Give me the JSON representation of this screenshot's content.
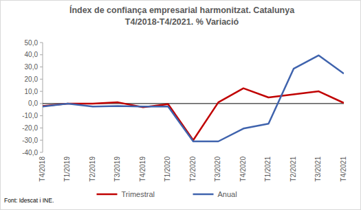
{
  "chart_data": {
    "type": "line",
    "title": "Índex de confiança empresarial harmonitzat. Catalunya",
    "subtitle": "T4/2018-T4/2021. % Variació",
    "source": "Font: Idescat i INE.",
    "categories": [
      "T4/2018",
      "T1/2019",
      "T2/2019",
      "T3/2019",
      "T4/2019",
      "T1/2020",
      "T2/2020",
      "T3/2020",
      "T4/2020",
      "T1/2021",
      "T2/2021",
      "T3/2021",
      "T4/2021"
    ],
    "series": [
      {
        "name": "Trimestral",
        "color": "#c00000",
        "values": [
          -2,
          0,
          0,
          1,
          -3,
          -0.5,
          -30,
          1,
          12.5,
          5,
          7.5,
          10,
          0.5
        ]
      },
      {
        "name": "Anual",
        "color": "#3f63ad",
        "values": [
          -2.5,
          0,
          -2.5,
          -2,
          -2.5,
          -2.5,
          -31,
          -31,
          -20.5,
          -16.5,
          28.5,
          39.5,
          24.5
        ]
      }
    ],
    "ylim": [
      -40,
      50
    ],
    "yticks": [
      {
        "value": -40,
        "label": "-40,0"
      },
      {
        "value": -30,
        "label": "-30,0"
      },
      {
        "value": -20,
        "label": "-20,0"
      },
      {
        "value": -10,
        "label": "-10,0"
      },
      {
        "value": 0,
        "label": "0,0"
      },
      {
        "value": 10,
        "label": "10,0"
      },
      {
        "value": 20,
        "label": "20,0"
      },
      {
        "value": 30,
        "label": "30,0"
      },
      {
        "value": 40,
        "label": "40,0"
      },
      {
        "value": 50,
        "label": "50,0"
      }
    ],
    "grid": false,
    "legend": "bottom"
  }
}
